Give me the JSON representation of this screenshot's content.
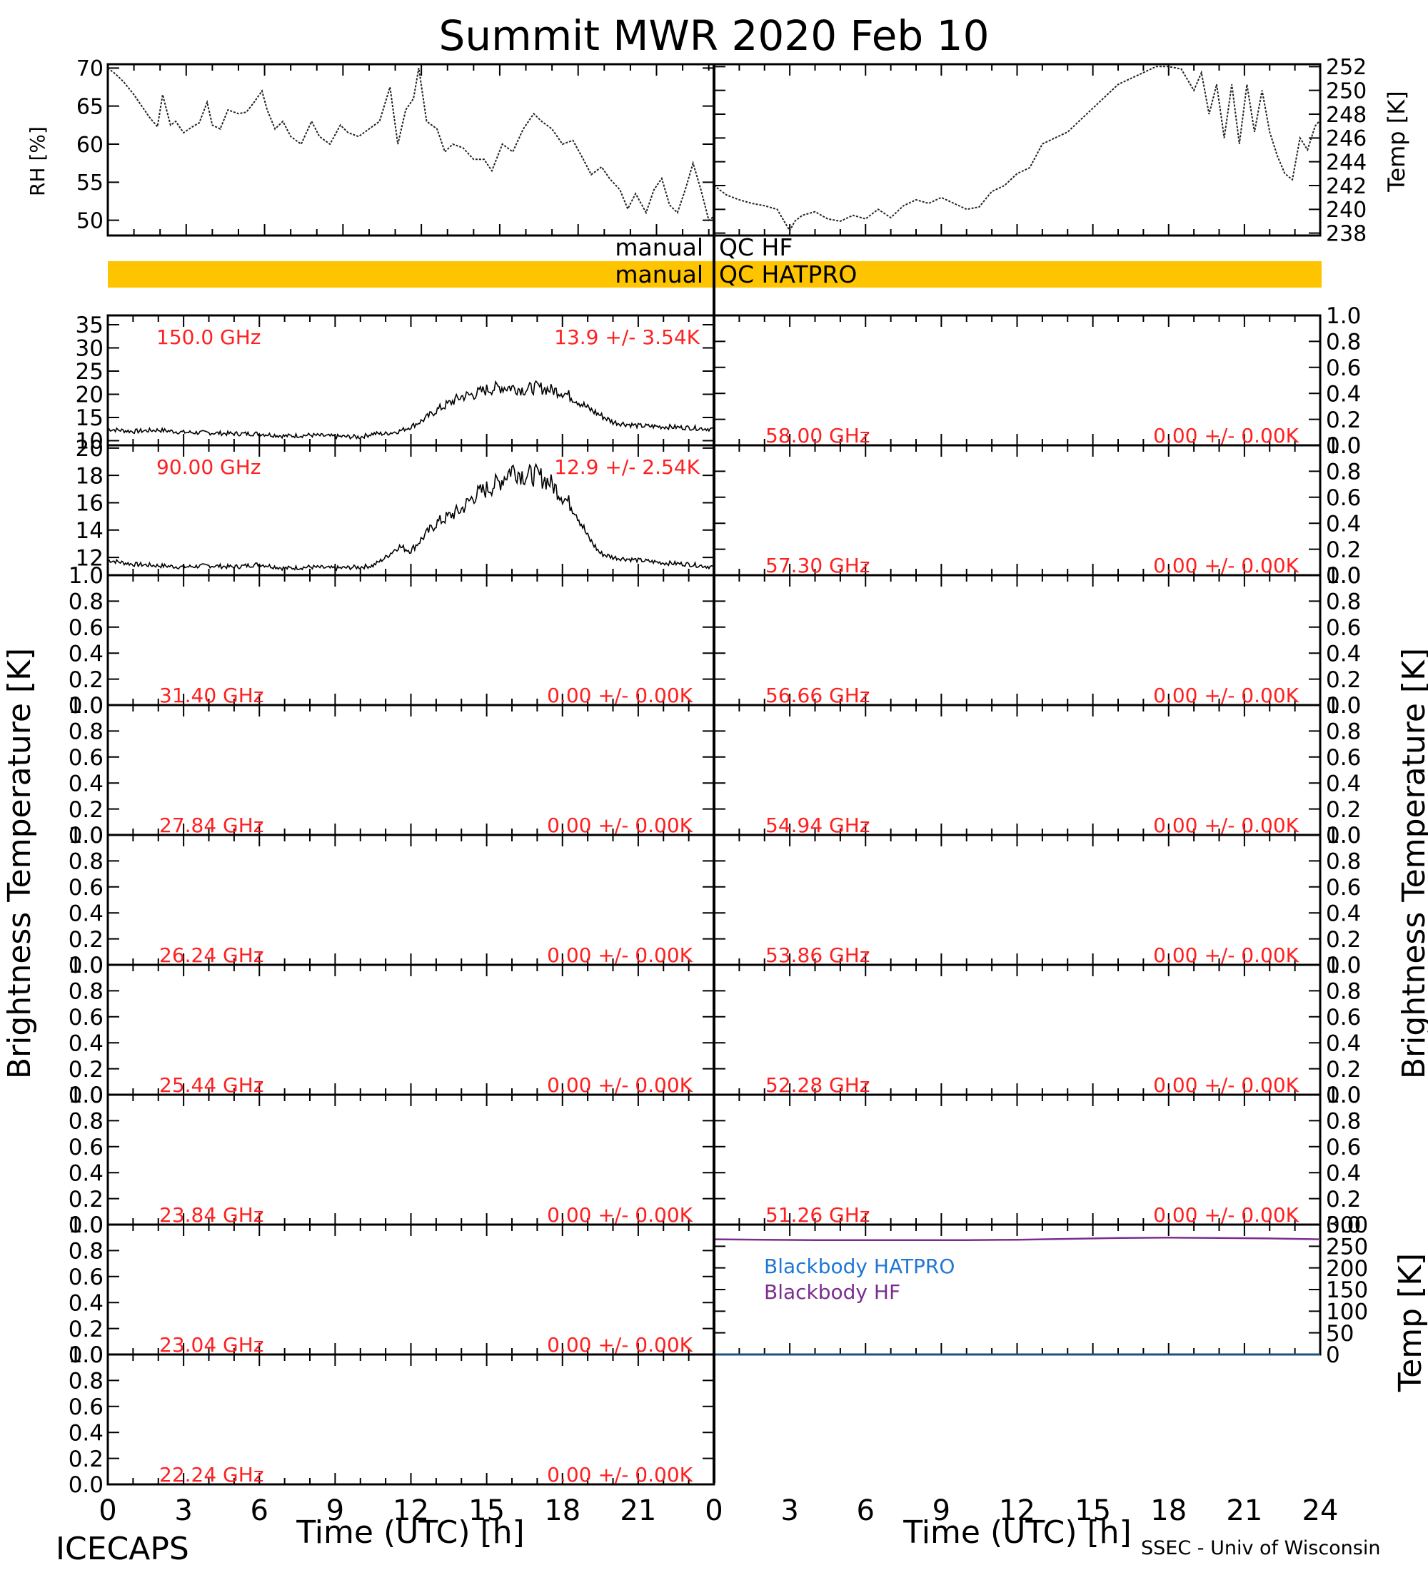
{
  "figure": {
    "title": "Summit MWR 2020 Feb 10",
    "footer_left": "ICECAPS",
    "footer_right": "SSEC - Univ of Wisconsin",
    "xlabel": "Time (UTC) [h]",
    "ylabel_bt": "Brightness Temperature [K]",
    "colors": {
      "axis": "#000000",
      "qc_bar": "#ffc400",
      "label": "#ff2020",
      "bb_hatpro": "#1f77d4",
      "bb_hf": "#7b2d8e"
    }
  },
  "qc": {
    "hf_left": "manual",
    "hf_right": "QC HF",
    "hatpro_left": "manual",
    "hatpro_right": "QC HATPRO"
  },
  "chart_data": [
    {
      "type": "line",
      "panel": "rh",
      "ylabel": "RH [%]",
      "ylim": [
        48,
        70.5
      ],
      "xlim": [
        0,
        23.2
      ],
      "yticks": [
        "50",
        "55",
        "60",
        "65",
        "70"
      ],
      "x": [
        0,
        0.3,
        0.6,
        1,
        1.3,
        1.6,
        1.9,
        2.1,
        2.4,
        2.6,
        2.9,
        3.2,
        3.5,
        3.8,
        4.0,
        4.3,
        4.6,
        5.0,
        5.3,
        5.6,
        5.9,
        6.1,
        6.4,
        6.7,
        7.0,
        7.4,
        7.8,
        8.1,
        8.5,
        8.9,
        9.2,
        9.6,
        10,
        10.4,
        10.8,
        11.1,
        11.4,
        11.7,
        11.9,
        12.2,
        12.6,
        12.9,
        13.2,
        13.6,
        14.0,
        14.4,
        14.7,
        15.1,
        15.5,
        15.9,
        16.3,
        16.6,
        17.0,
        17.4,
        17.8,
        18.2,
        18.5,
        18.9,
        19.2,
        19.6,
        19.9,
        20.2,
        20.6,
        20.9,
        21.2,
        21.5,
        21.8,
        22.1,
        22.4,
        22.7,
        23.0,
        23.2
      ],
      "values": [
        70,
        69.2,
        68.2,
        66.5,
        65,
        63.5,
        62.3,
        66.5,
        62.5,
        63.0,
        61.5,
        62.2,
        62.8,
        65.5,
        62.5,
        62.0,
        64.5,
        64.0,
        64.2,
        65.5,
        67.0,
        64.5,
        62.0,
        63.0,
        61.0,
        60.0,
        63.0,
        61.0,
        60.0,
        62.5,
        61.5,
        61.0,
        62.0,
        63.0,
        67.5,
        60.0,
        64.5,
        66.0,
        70.0,
        63.0,
        62.0,
        59.0,
        60.0,
        59.5,
        58.0,
        58.0,
        56.5,
        60.0,
        59.0,
        62.0,
        64.0,
        63.0,
        62.0,
        60.0,
        60.5,
        58.0,
        56.0,
        57.0,
        55.5,
        54.0,
        51.5,
        53.5,
        51.0,
        54.0,
        55.5,
        52.0,
        51.0,
        54.0,
        57.5,
        54.0,
        50.0,
        50.5
      ]
    },
    {
      "type": "line",
      "panel": "temp",
      "ylabel": "Temp [K]",
      "ylim": [
        237.8,
        252.2
      ],
      "xlim": [
        0,
        24
      ],
      "yticks": [
        "238",
        "240",
        "242",
        "244",
        "246",
        "248",
        "250",
        "252"
      ],
      "x": [
        0,
        0.5,
        1,
        1.5,
        2,
        2.5,
        3,
        3.2,
        3.5,
        4,
        4.5,
        5,
        5.5,
        6,
        6.5,
        7,
        7.5,
        8,
        8.5,
        9,
        9.5,
        10,
        10.5,
        11,
        11.5,
        12,
        12.5,
        13,
        13.5,
        14,
        14.5,
        15,
        15.5,
        16,
        16.5,
        17,
        17.5,
        18,
        18.5,
        19,
        19.3,
        19.6,
        19.9,
        20.2,
        20.5,
        20.8,
        21.1,
        21.4,
        21.7,
        22,
        22.3,
        22.6,
        22.9,
        23.2,
        23.5,
        23.8,
        24
      ],
      "values": [
        242,
        241.2,
        240.8,
        240.5,
        240.3,
        240.0,
        238.2,
        239.0,
        239.5,
        239.8,
        239.2,
        239.0,
        239.5,
        239.2,
        240.0,
        239.3,
        240.3,
        240.8,
        240.5,
        241.0,
        240.5,
        240.0,
        240.2,
        241.5,
        242.0,
        243.0,
        243.5,
        245.5,
        246.0,
        246.5,
        247.5,
        248.5,
        249.5,
        250.5,
        251.0,
        251.5,
        252.0,
        252.0,
        251.8,
        250.0,
        251.5,
        248.0,
        250.5,
        246.0,
        250.5,
        245.5,
        250.5,
        246.5,
        250.0,
        246.5,
        244.5,
        243.0,
        242.5,
        246.0,
        245.0,
        247.0,
        247.5
      ]
    },
    {
      "type": "scatter",
      "panel": "150.0 GHz",
      "freq_label": "150.0 GHz",
      "stat_label": "13.9 +/- 3.54K",
      "ylim": [
        9,
        37
      ],
      "xlim": [
        0,
        24
      ],
      "yticks": [
        "10",
        "15",
        "20",
        "25",
        "30",
        "35"
      ],
      "x": [
        0,
        1,
        2,
        3,
        4,
        5,
        6,
        7,
        8,
        9,
        10,
        10.5,
        11,
        11.5,
        12,
        12.5,
        13,
        13.5,
        14,
        14.5,
        15,
        15.5,
        16,
        16.5,
        17,
        17.5,
        18,
        18.5,
        19,
        19.5,
        20,
        21,
        22,
        23,
        24
      ],
      "values": [
        12.5,
        12.0,
        12.3,
        11.8,
        11.7,
        11.5,
        11.5,
        11.0,
        11.2,
        10.9,
        10.8,
        11.5,
        11.5,
        12.0,
        13.0,
        14.5,
        16.5,
        18.0,
        19.5,
        20.0,
        21.0,
        21.5,
        21.5,
        21.0,
        21.5,
        21.0,
        20.5,
        19.0,
        17.0,
        15.5,
        14.0,
        13.2,
        13.0,
        12.8,
        12.5
      ]
    },
    {
      "type": "scatter",
      "panel": "90.00 GHz",
      "freq_label": "90.00 GHz",
      "stat_label": "12.9 +/- 2.54K",
      "ylim": [
        10.7,
        20.2
      ],
      "xlim": [
        0,
        24
      ],
      "yticks": [
        "12",
        "14",
        "16",
        "18",
        "20"
      ],
      "x": [
        0,
        1,
        2,
        3,
        4,
        5,
        6,
        7,
        8,
        9,
        10,
        10.5,
        11,
        11.5,
        12,
        12.5,
        13,
        13.5,
        14,
        14.5,
        15,
        15.5,
        16,
        16.5,
        17,
        17.5,
        18,
        18.5,
        19,
        19.5,
        20,
        21,
        22,
        23,
        24
      ],
      "values": [
        11.8,
        11.5,
        11.4,
        11.3,
        11.4,
        11.3,
        11.5,
        11.2,
        11.3,
        11.2,
        11.3,
        11.4,
        12.0,
        12.8,
        12.5,
        13.5,
        14.5,
        15.0,
        15.5,
        16.5,
        17.0,
        17.5,
        18.5,
        18.0,
        18.0,
        17.5,
        16.5,
        15.5,
        13.5,
        12.3,
        12.0,
        11.8,
        11.6,
        11.5,
        11.3
      ]
    },
    {
      "type": "line",
      "panel": "58.00 GHz",
      "freq_label": "58.00 GHz",
      "stat_label": "0.00 +/- 0.00K",
      "ylim": [
        0,
        1
      ],
      "yticks": [
        "0.0",
        "0.2",
        "0.4",
        "0.6",
        "0.8",
        "1.0"
      ],
      "values": []
    },
    {
      "type": "line",
      "panel": "57.30 GHz",
      "freq_label": "57.30 GHz",
      "stat_label": "0.00 +/- 0.00K",
      "ylim": [
        0,
        1
      ],
      "yticks": [
        "0.0",
        "0.2",
        "0.4",
        "0.6",
        "0.8",
        "1.0"
      ],
      "values": []
    },
    {
      "type": "line",
      "panel": "31.40 GHz",
      "freq_label": "31.40 GHz",
      "stat_label": "0.00 +/- 0.00K",
      "ylim": [
        0,
        1
      ],
      "yticks": [
        "0.0",
        "0.2",
        "0.4",
        "0.6",
        "0.8",
        "1.0"
      ],
      "values": []
    },
    {
      "type": "line",
      "panel": "56.66 GHz",
      "freq_label": "56.66 GHz",
      "stat_label": "0.00 +/- 0.00K",
      "ylim": [
        0,
        1
      ],
      "yticks": [
        "0.0",
        "0.2",
        "0.4",
        "0.6",
        "0.8",
        "1.0"
      ],
      "values": []
    },
    {
      "type": "line",
      "panel": "27.84 GHz",
      "freq_label": "27.84 GHz",
      "stat_label": "0.00 +/- 0.00K",
      "ylim": [
        0,
        1
      ],
      "yticks": [
        "0.0",
        "0.2",
        "0.4",
        "0.6",
        "0.8",
        "1.0"
      ],
      "values": []
    },
    {
      "type": "line",
      "panel": "54.94 GHz",
      "freq_label": "54.94 GHz",
      "stat_label": "0.00 +/- 0.00K",
      "ylim": [
        0,
        1
      ],
      "yticks": [
        "0.0",
        "0.2",
        "0.4",
        "0.6",
        "0.8",
        "1.0"
      ],
      "values": []
    },
    {
      "type": "line",
      "panel": "26.24 GHz",
      "freq_label": "26.24 GHz",
      "stat_label": "0.00 +/- 0.00K",
      "ylim": [
        0,
        1
      ],
      "yticks": [
        "0.0",
        "0.2",
        "0.4",
        "0.6",
        "0.8",
        "1.0"
      ],
      "values": []
    },
    {
      "type": "line",
      "panel": "53.86 GHz",
      "freq_label": "53.86 GHz",
      "stat_label": "0.00 +/- 0.00K",
      "ylim": [
        0,
        1
      ],
      "yticks": [
        "0.0",
        "0.2",
        "0.4",
        "0.6",
        "0.8",
        "1.0"
      ],
      "values": []
    },
    {
      "type": "line",
      "panel": "25.44 GHz",
      "freq_label": "25.44 GHz",
      "stat_label": "0.00 +/- 0.00K",
      "ylim": [
        0,
        1
      ],
      "yticks": [
        "0.0",
        "0.2",
        "0.4",
        "0.6",
        "0.8",
        "1.0"
      ],
      "values": []
    },
    {
      "type": "line",
      "panel": "52.28 GHz",
      "freq_label": "52.28 GHz",
      "stat_label": "0.00 +/- 0.00K",
      "ylim": [
        0,
        1
      ],
      "yticks": [
        "0.0",
        "0.2",
        "0.4",
        "0.6",
        "0.8",
        "1.0"
      ],
      "values": []
    },
    {
      "type": "line",
      "panel": "23.84 GHz",
      "freq_label": "23.84 GHz",
      "stat_label": "0.00 +/- 0.00K",
      "ylim": [
        0,
        1
      ],
      "yticks": [
        "0.0",
        "0.2",
        "0.4",
        "0.6",
        "0.8",
        "1.0"
      ],
      "values": []
    },
    {
      "type": "line",
      "panel": "51.26 GHz",
      "freq_label": "51.26 GHz",
      "stat_label": "0.00 +/- 0.00K",
      "ylim": [
        0,
        1
      ],
      "yticks": [
        "0.0",
        "0.2",
        "0.4",
        "0.6",
        "0.8",
        "1.0"
      ],
      "values": []
    },
    {
      "type": "line",
      "panel": "23.04 GHz",
      "freq_label": "23.04 GHz",
      "stat_label": "0.00 +/- 0.00K",
      "ylim": [
        0,
        1
      ],
      "yticks": [
        "0.0",
        "0.2",
        "0.4",
        "0.6",
        "0.8",
        "1.0"
      ],
      "values": []
    },
    {
      "type": "line",
      "panel": "22.24 GHz",
      "freq_label": "22.24 GHz",
      "stat_label": "0.00 +/- 0.00K",
      "ylim": [
        0,
        1
      ],
      "yticks": [
        "0.0",
        "0.2",
        "0.4",
        "0.6",
        "0.8",
        "1.0"
      ],
      "values": []
    },
    {
      "type": "line",
      "panel": "blackbody",
      "ylabel": "Temp [K]",
      "ylim": [
        0,
        300
      ],
      "xlim": [
        0,
        24
      ],
      "yticks": [
        "0",
        "50",
        "100",
        "150",
        "200",
        "250",
        "300"
      ],
      "series": [
        {
          "name": "Blackbody HATPRO",
          "x": [
            0,
            24
          ],
          "values": [
            0,
            0
          ]
        },
        {
          "name": "Blackbody HF",
          "x": [
            0,
            2,
            4,
            6,
            8,
            10,
            12,
            14,
            16,
            18,
            20,
            22,
            24
          ],
          "values": [
            266,
            265,
            264,
            264,
            264,
            264,
            265,
            267,
            269,
            270,
            269,
            268,
            266
          ]
        }
      ]
    }
  ],
  "xticks": [
    "0",
    "3",
    "6",
    "9",
    "12",
    "15",
    "18",
    "21",
    "24"
  ]
}
